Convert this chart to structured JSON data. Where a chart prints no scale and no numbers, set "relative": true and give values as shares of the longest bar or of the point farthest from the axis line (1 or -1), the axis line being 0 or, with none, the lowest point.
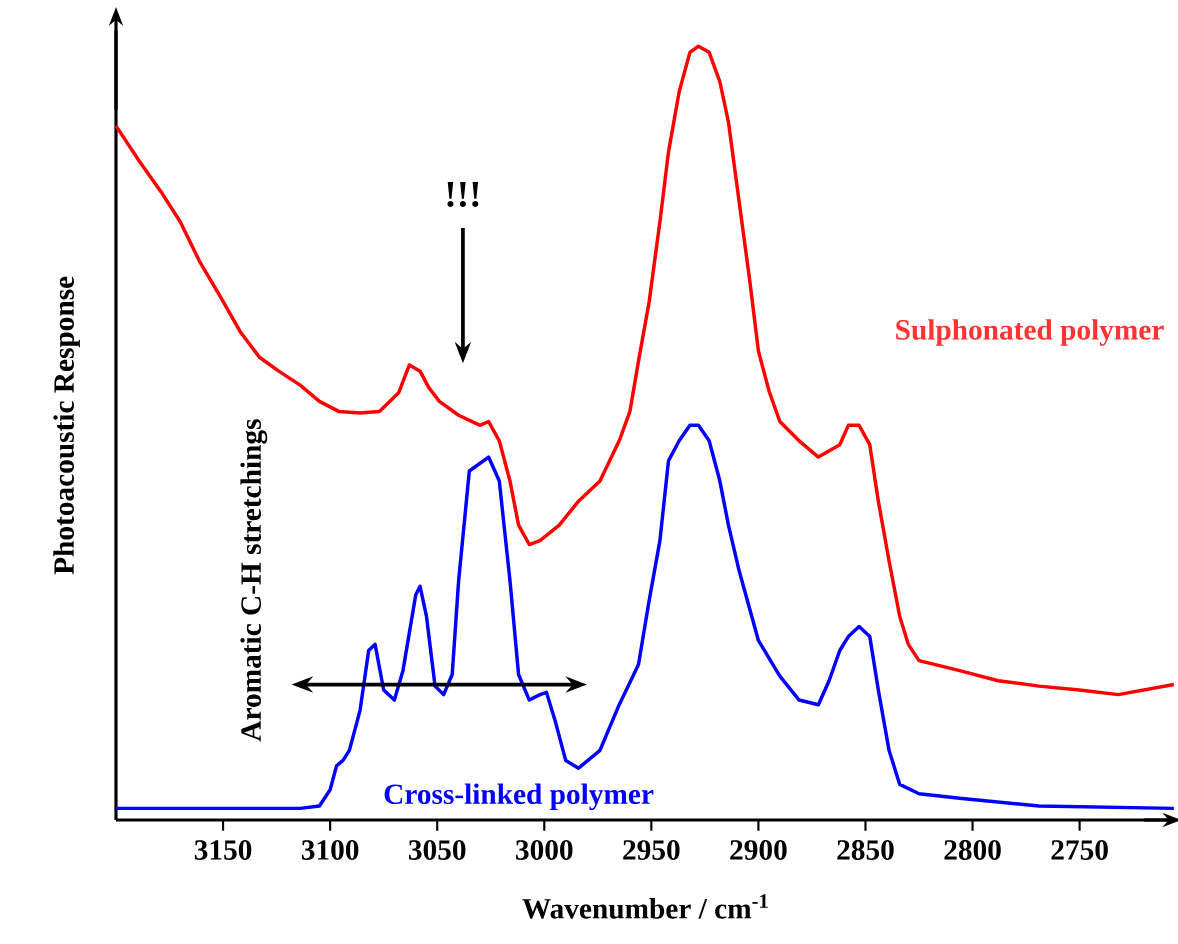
{
  "chart_data": {
    "type": "line",
    "relative": true,
    "xlabel": "Wavenumber / cm$^{-1}$",
    "ylabel": "Photoacoustic Response",
    "xlim": [
      3200,
      2705
    ],
    "xticks": [
      3150,
      3100,
      3050,
      3000,
      2950,
      2900,
      2850,
      2800,
      2750
    ],
    "legend": false,
    "annotations": [
      "!!!",
      "Aromatic C-H stretchings"
    ],
    "series": [
      {
        "name": "Sulphonated polymer",
        "color": "#ff0000",
        "x": [
          3200,
          3189,
          3179,
          3170,
          3161,
          3151,
          3142,
          3133,
          3124,
          3114,
          3105,
          3096,
          3086,
          3077,
          3068,
          3063,
          3058,
          3054,
          3049,
          3040,
          3030,
          3026,
          3021,
          3016,
          3012,
          3007,
          3002,
          2993,
          2984,
          2974,
          2965,
          2960,
          2956,
          2951,
          2946,
          2942,
          2937,
          2932,
          2928,
          2923,
          2918,
          2914,
          2909,
          2904,
          2900,
          2895,
          2890,
          2881,
          2872,
          2862,
          2858,
          2853,
          2848,
          2844,
          2839,
          2834,
          2830,
          2825,
          2806,
          2788,
          2769,
          2750,
          2732,
          2706
        ],
        "values": [
          0.897,
          0.851,
          0.812,
          0.773,
          0.722,
          0.675,
          0.631,
          0.598,
          0.58,
          0.562,
          0.541,
          0.528,
          0.526,
          0.528,
          0.552,
          0.588,
          0.58,
          0.559,
          0.541,
          0.523,
          0.51,
          0.515,
          0.49,
          0.438,
          0.381,
          0.356,
          0.361,
          0.381,
          0.412,
          0.438,
          0.49,
          0.528,
          0.593,
          0.67,
          0.773,
          0.863,
          0.941,
          0.992,
          1.0,
          0.992,
          0.954,
          0.902,
          0.799,
          0.696,
          0.606,
          0.554,
          0.515,
          0.49,
          0.469,
          0.485,
          0.51,
          0.51,
          0.485,
          0.412,
          0.335,
          0.263,
          0.227,
          0.206,
          0.193,
          0.18,
          0.173,
          0.168,
          0.162,
          0.175
        ]
      },
      {
        "name": "Cross-linked polymer",
        "color": "#0000ff",
        "x": [
          3200,
          3161,
          3114,
          3105,
          3100,
          3097,
          3094,
          3091,
          3086,
          3082,
          3079,
          3075,
          3070,
          3066,
          3060,
          3058,
          3055,
          3051,
          3047,
          3043,
          3040,
          3035,
          3026,
          3021,
          3016,
          3012,
          3007,
          3002,
          2999,
          2995,
          2990,
          2984,
          2974,
          2965,
          2956,
          2951,
          2946,
          2942,
          2937,
          2932,
          2928,
          2923,
          2918,
          2914,
          2909,
          2900,
          2890,
          2881,
          2872,
          2867,
          2862,
          2858,
          2853,
          2848,
          2844,
          2839,
          2834,
          2825,
          2806,
          2769,
          2706
        ],
        "values": [
          0.015,
          0.015,
          0.015,
          0.018,
          0.039,
          0.07,
          0.077,
          0.09,
          0.142,
          0.219,
          0.227,
          0.168,
          0.155,
          0.193,
          0.291,
          0.302,
          0.263,
          0.173,
          0.162,
          0.188,
          0.309,
          0.451,
          0.469,
          0.438,
          0.309,
          0.188,
          0.155,
          0.162,
          0.165,
          0.129,
          0.077,
          0.067,
          0.09,
          0.149,
          0.201,
          0.284,
          0.361,
          0.464,
          0.49,
          0.51,
          0.51,
          0.49,
          0.438,
          0.381,
          0.322,
          0.232,
          0.186,
          0.155,
          0.149,
          0.18,
          0.219,
          0.237,
          0.25,
          0.237,
          0.168,
          0.09,
          0.046,
          0.034,
          0.028,
          0.018,
          0.015
        ]
      }
    ]
  }
}
